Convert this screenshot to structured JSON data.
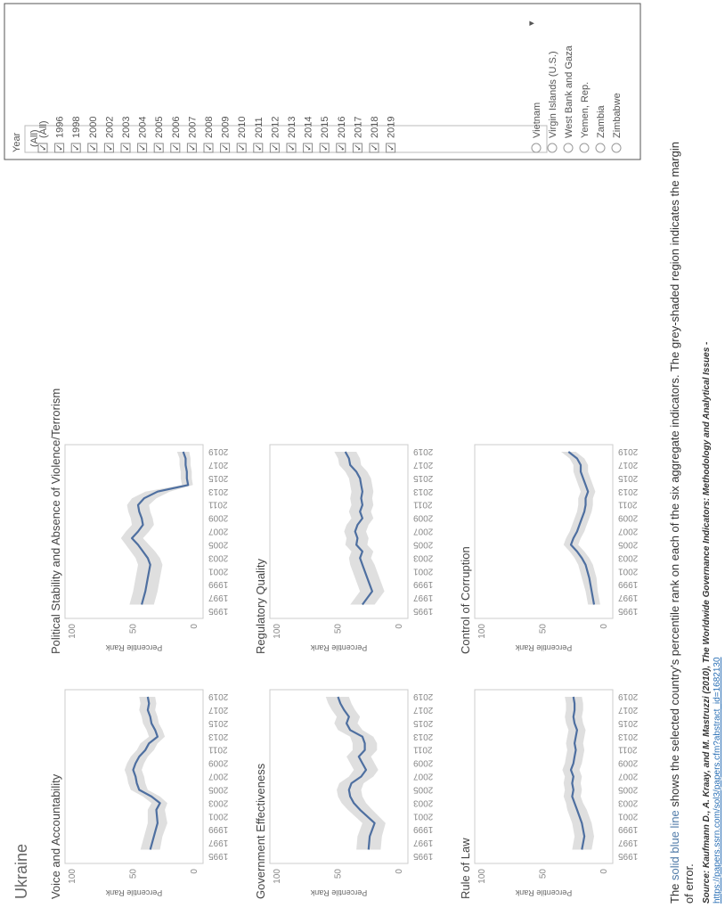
{
  "country": "Ukraine",
  "note": {
    "prefix": "The ",
    "highlight": "solid blue line",
    "rest": " shows the selected country's percentile rank on each of the six aggregate indicators.  The grey-shaded region indicates the margin",
    "line2": "of error."
  },
  "source": {
    "text": "Source: Kaufmann D., A. Kraay, and M. Mastruzzi (2010), The Worldwide Governance Indicators: Methodology and Analytical Issues - ",
    "link": "https://papers.ssrn.com/sol3/papers.cfm?abstract_id=1682130"
  },
  "filter": {
    "title": "Year",
    "selected": "(All)",
    "items": [
      {
        "label": "(All)",
        "checked": true
      },
      {
        "label": "1996",
        "checked": true
      },
      {
        "label": "1998",
        "checked": true
      },
      {
        "label": "2000",
        "checked": true
      },
      {
        "label": "2002",
        "checked": true
      },
      {
        "label": "2003",
        "checked": true
      },
      {
        "label": "2004",
        "checked": true
      },
      {
        "label": "2005",
        "checked": true
      },
      {
        "label": "2006",
        "checked": true
      },
      {
        "label": "2007",
        "checked": true
      },
      {
        "label": "2008",
        "checked": true
      },
      {
        "label": "2009",
        "checked": true
      },
      {
        "label": "2010",
        "checked": true
      },
      {
        "label": "2011",
        "checked": true
      },
      {
        "label": "2012",
        "checked": true
      },
      {
        "label": "2013",
        "checked": true
      },
      {
        "label": "2014",
        "checked": true
      },
      {
        "label": "2015",
        "checked": true
      },
      {
        "label": "2016",
        "checked": true
      },
      {
        "label": "2017",
        "checked": true
      },
      {
        "label": "2018",
        "checked": true
      },
      {
        "label": "2019",
        "checked": true
      }
    ],
    "countries": [
      "Vietnam",
      "Virgin Islands (U.S.)",
      "West Bank and Gaza",
      "Yemen, Rep.",
      "Zambia",
      "Zimbabwe"
    ]
  },
  "colors": {
    "line": "#4e6fa0",
    "band": "#d9d9d9",
    "axis": "#cccccc"
  },
  "chart_data": [
    {
      "type": "area",
      "title": "Voice and Accountability",
      "ylabel": "Percentile Rank",
      "ylim": [
        0,
        100
      ],
      "yticks": [
        0,
        50,
        100
      ],
      "xticks": [
        "1995",
        "1997",
        "1999",
        "2001",
        "2003",
        "2005",
        "2007",
        "2009",
        "2011",
        "2013",
        "2015",
        "2017",
        "2019"
      ],
      "x": [
        1996,
        1998,
        2000,
        2002,
        2003,
        2004,
        2005,
        2006,
        2007,
        2008,
        2009,
        2010,
        2011,
        2012,
        2013,
        2014,
        2015,
        2016,
        2017,
        2018,
        2019
      ],
      "values": [
        36,
        33,
        30,
        31,
        28,
        35,
        45,
        47,
        48,
        50,
        48,
        45,
        40,
        37,
        30,
        32,
        35,
        36,
        38,
        37,
        38
      ],
      "lower": [
        28,
        26,
        22,
        24,
        22,
        28,
        38,
        40,
        41,
        43,
        41,
        38,
        33,
        30,
        24,
        26,
        29,
        30,
        32,
        31,
        32
      ],
      "upper": [
        44,
        41,
        38,
        38,
        35,
        42,
        52,
        54,
        55,
        57,
        55,
        52,
        47,
        44,
        37,
        39,
        42,
        43,
        45,
        44,
        45
      ]
    },
    {
      "type": "area",
      "title": "Political Stability and Absence of Violence/Terrorism",
      "ylabel": "Percentile Rank",
      "ylim": [
        0,
        100
      ],
      "yticks": [
        0,
        50,
        100
      ],
      "xticks": [
        "1995",
        "1997",
        "1999",
        "2001",
        "2003",
        "2005",
        "2007",
        "2009",
        "2011",
        "2013",
        "2015",
        "2017",
        "2019"
      ],
      "x": [
        1996,
        1998,
        2000,
        2002,
        2003,
        2004,
        2005,
        2006,
        2007,
        2008,
        2009,
        2010,
        2011,
        2012,
        2013,
        2014,
        2015,
        2016,
        2017,
        2018,
        2019
      ],
      "values": [
        43,
        40,
        38,
        36,
        38,
        42,
        46,
        51,
        46,
        42,
        43,
        45,
        46,
        41,
        30,
        5,
        6,
        6,
        7,
        7,
        9
      ],
      "lower": [
        33,
        30,
        28,
        26,
        28,
        32,
        37,
        42,
        37,
        33,
        34,
        36,
        37,
        31,
        20,
        1,
        2,
        2,
        3,
        3,
        4
      ],
      "upper": [
        53,
        50,
        48,
        46,
        48,
        52,
        56,
        60,
        56,
        51,
        52,
        54,
        55,
        51,
        40,
        10,
        11,
        11,
        12,
        12,
        14
      ]
    },
    {
      "type": "area",
      "title": "Government Effectiveness",
      "ylabel": "Percentile Rank",
      "ylim": [
        0,
        100
      ],
      "yticks": [
        0,
        50,
        100
      ],
      "xticks": [
        "1995",
        "1997",
        "1999",
        "2001",
        "2003",
        "2005",
        "2007",
        "2009",
        "2011",
        "2013",
        "2015",
        "2017",
        "2019"
      ],
      "x": [
        1996,
        1998,
        2000,
        2002,
        2003,
        2004,
        2005,
        2006,
        2007,
        2008,
        2009,
        2010,
        2011,
        2012,
        2013,
        2014,
        2015,
        2016,
        2017,
        2018,
        2019
      ],
      "values": [
        25,
        24,
        20,
        32,
        37,
        40,
        41,
        39,
        31,
        27,
        30,
        33,
        28,
        28,
        30,
        40,
        43,
        41,
        45,
        48,
        50
      ],
      "lower": [
        15,
        14,
        11,
        22,
        27,
        30,
        31,
        29,
        21,
        17,
        20,
        23,
        18,
        18,
        21,
        30,
        34,
        32,
        36,
        39,
        41
      ],
      "upper": [
        35,
        34,
        30,
        42,
        47,
        50,
        51,
        49,
        41,
        37,
        40,
        43,
        38,
        38,
        40,
        50,
        53,
        51,
        55,
        58,
        60
      ]
    },
    {
      "type": "area",
      "title": "Regulatory Quality",
      "ylabel": "Percentile Rank",
      "ylim": [
        0,
        100
      ],
      "yticks": [
        0,
        50,
        100
      ],
      "xticks": [
        "1995",
        "1997",
        "1999",
        "2001",
        "2003",
        "2005",
        "2007",
        "2009",
        "2011",
        "2013",
        "2015",
        "2017",
        "2019"
      ],
      "x": [
        1996,
        1998,
        2000,
        2002,
        2003,
        2004,
        2005,
        2006,
        2007,
        2008,
        2009,
        2010,
        2011,
        2012,
        2013,
        2014,
        2015,
        2016,
        2017,
        2018,
        2019
      ],
      "values": [
        30,
        22,
        26,
        30,
        32,
        30,
        35,
        34,
        36,
        34,
        30,
        32,
        30,
        31,
        30,
        31,
        32,
        35,
        40,
        41,
        44
      ],
      "lower": [
        20,
        12,
        16,
        20,
        23,
        21,
        26,
        25,
        27,
        25,
        21,
        23,
        21,
        22,
        21,
        22,
        23,
        26,
        31,
        32,
        35
      ],
      "upper": [
        40,
        32,
        36,
        40,
        41,
        39,
        44,
        43,
        45,
        43,
        39,
        41,
        39,
        40,
        39,
        40,
        41,
        44,
        49,
        50,
        53
      ]
    },
    {
      "type": "area",
      "title": "Rule of Law",
      "ylabel": "Percentile Rank",
      "ylim": [
        0,
        100
      ],
      "yticks": [
        0,
        50,
        100
      ],
      "xticks": [
        "1995",
        "1997",
        "1999",
        "2001",
        "2003",
        "2005",
        "2007",
        "2009",
        "2011",
        "2013",
        "2015",
        "2017",
        "2019"
      ],
      "x": [
        1996,
        1998,
        2000,
        2002,
        2003,
        2004,
        2005,
        2006,
        2007,
        2008,
        2009,
        2010,
        2011,
        2012,
        2013,
        2014,
        2015,
        2016,
        2017,
        2018,
        2019
      ],
      "values": [
        18,
        16,
        18,
        22,
        24,
        26,
        25,
        26,
        25,
        27,
        25,
        24,
        23,
        24,
        23,
        22,
        24,
        25,
        24,
        24,
        25
      ],
      "lower": [
        10,
        8,
        10,
        14,
        17,
        19,
        18,
        19,
        18,
        20,
        18,
        17,
        16,
        17,
        16,
        15,
        17,
        18,
        17,
        17,
        18
      ],
      "upper": [
        26,
        24,
        26,
        30,
        31,
        33,
        32,
        33,
        32,
        34,
        32,
        31,
        30,
        31,
        30,
        29,
        31,
        32,
        31,
        31,
        32
      ]
    },
    {
      "type": "area",
      "title": "Control of Corruption",
      "ylabel": "Percentile Rank",
      "ylim": [
        0,
        100
      ],
      "yticks": [
        0,
        50,
        100
      ],
      "xticks": [
        "1995",
        "1997",
        "1999",
        "2001",
        "2003",
        "2005",
        "2007",
        "2009",
        "2011",
        "2013",
        "2015",
        "2017",
        "2019"
      ],
      "x": [
        1996,
        1998,
        2000,
        2002,
        2003,
        2004,
        2005,
        2006,
        2007,
        2008,
        2009,
        2010,
        2011,
        2012,
        2013,
        2014,
        2015,
        2016,
        2017,
        2018,
        2019
      ],
      "values": [
        8,
        10,
        12,
        15,
        18,
        22,
        27,
        25,
        22,
        20,
        18,
        16,
        15,
        15,
        13,
        15,
        17,
        19,
        19,
        22,
        29
      ],
      "lower": [
        3,
        5,
        6,
        9,
        12,
        16,
        21,
        19,
        16,
        14,
        12,
        10,
        9,
        9,
        7,
        9,
        11,
        13,
        13,
        16,
        23
      ],
      "upper": [
        13,
        15,
        18,
        21,
        24,
        28,
        33,
        31,
        28,
        26,
        24,
        22,
        21,
        21,
        19,
        21,
        23,
        25,
        25,
        28,
        35
      ]
    }
  ]
}
